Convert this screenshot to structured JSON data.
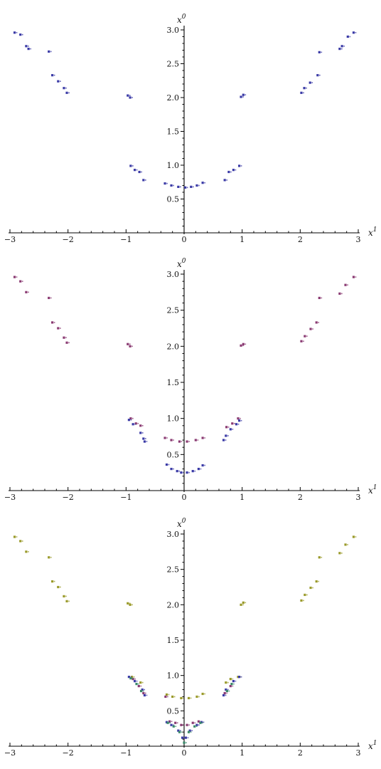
{
  "chart_data": [
    {
      "type": "scatter",
      "title": "",
      "xlabel": "x",
      "xlabel_sup": "1",
      "ylabel": "x",
      "ylabel_sup": "0",
      "xlim": [
        -3,
        3
      ],
      "ylim": [
        0,
        3
      ],
      "x_ticks": [
        "-3",
        "-2",
        "-1",
        "0",
        "1",
        "2",
        "3"
      ],
      "y_ticks": [
        "0.5",
        "1.0",
        "1.5",
        "2.0",
        "2.5",
        "3.0"
      ],
      "grid": false,
      "legend": "none",
      "series": [
        {
          "color": "#3a3aa6",
          "points": [
            [
              -2.92,
              2.96
            ],
            [
              -2.82,
              2.93
            ],
            [
              -2.72,
              2.76
            ],
            [
              -2.68,
              2.72
            ],
            [
              -2.33,
              2.68
            ],
            [
              -2.27,
              2.33
            ],
            [
              -2.17,
              2.24
            ],
            [
              -2.07,
              2.14
            ],
            [
              -2.02,
              2.07
            ],
            [
              -0.97,
              2.03
            ],
            [
              -0.93,
              2.0
            ],
            [
              -0.92,
              0.99
            ],
            [
              -0.85,
              0.93
            ],
            [
              -0.77,
              0.9
            ],
            [
              -0.7,
              0.78
            ],
            [
              -0.33,
              0.73
            ],
            [
              -0.22,
              0.7
            ],
            [
              -0.1,
              0.68
            ],
            [
              0.02,
              0.67
            ],
            [
              0.12,
              0.68
            ],
            [
              0.22,
              0.7
            ],
            [
              0.32,
              0.74
            ],
            [
              0.7,
              0.78
            ],
            [
              0.77,
              0.9
            ],
            [
              0.85,
              0.93
            ],
            [
              0.95,
              0.99
            ],
            [
              0.98,
              2.01
            ],
            [
              1.02,
              2.04
            ],
            [
              2.02,
              2.07
            ],
            [
              2.07,
              2.14
            ],
            [
              2.17,
              2.22
            ],
            [
              2.3,
              2.33
            ],
            [
              2.33,
              2.67
            ],
            [
              2.68,
              2.72
            ],
            [
              2.72,
              2.76
            ],
            [
              2.82,
              2.9
            ],
            [
              2.92,
              2.96
            ]
          ]
        }
      ]
    },
    {
      "type": "scatter",
      "title": "",
      "xlabel": "x",
      "xlabel_sup": "1",
      "ylabel": "x",
      "ylabel_sup": "0",
      "xlim": [
        -3,
        3
      ],
      "ylim": [
        0,
        3
      ],
      "x_ticks": [
        "-3",
        "-2",
        "-1",
        "0",
        "1",
        "2",
        "3"
      ],
      "y_ticks": [
        "0.5",
        "1.0",
        "1.5",
        "2.0",
        "2.5",
        "3.0"
      ],
      "grid": false,
      "legend": "none",
      "series": [
        {
          "color": "#8a3a72",
          "points": [
            [
              -2.92,
              2.96
            ],
            [
              -2.82,
              2.9
            ],
            [
              -2.72,
              2.75
            ],
            [
              -2.33,
              2.67
            ],
            [
              -2.27,
              2.33
            ],
            [
              -2.17,
              2.25
            ],
            [
              -2.07,
              2.12
            ],
            [
              -2.02,
              2.05
            ],
            [
              -0.97,
              2.03
            ],
            [
              -0.93,
              2.0
            ],
            [
              -0.92,
              1.0
            ],
            [
              -0.83,
              0.93
            ],
            [
              -0.75,
              0.9
            ],
            [
              -0.33,
              0.73
            ],
            [
              -0.22,
              0.7
            ],
            [
              -0.08,
              0.68
            ],
            [
              0.05,
              0.68
            ],
            [
              0.2,
              0.7
            ],
            [
              0.32,
              0.73
            ],
            [
              0.73,
              0.88
            ],
            [
              0.83,
              0.93
            ],
            [
              0.93,
              1.0
            ],
            [
              0.98,
              2.01
            ],
            [
              1.02,
              2.03
            ],
            [
              2.02,
              2.07
            ],
            [
              2.08,
              2.14
            ],
            [
              2.18,
              2.24
            ],
            [
              2.28,
              2.33
            ],
            [
              2.33,
              2.67
            ],
            [
              2.68,
              2.73
            ],
            [
              2.78,
              2.85
            ],
            [
              2.92,
              2.96
            ]
          ]
        },
        {
          "color": "#3a3aa6",
          "points": [
            [
              -0.95,
              0.98
            ],
            [
              -0.88,
              0.92
            ],
            [
              -0.75,
              0.8
            ],
            [
              -0.7,
              0.72
            ],
            [
              -0.68,
              0.68
            ],
            [
              -0.3,
              0.36
            ],
            [
              -0.22,
              0.3
            ],
            [
              -0.12,
              0.27
            ],
            [
              -0.05,
              0.25
            ],
            [
              0.05,
              0.25
            ],
            [
              0.15,
              0.27
            ],
            [
              0.25,
              0.3
            ],
            [
              0.32,
              0.35
            ],
            [
              0.68,
              0.7
            ],
            [
              0.72,
              0.76
            ],
            [
              0.8,
              0.85
            ],
            [
              0.9,
              0.92
            ],
            [
              0.95,
              0.97
            ]
          ]
        }
      ]
    },
    {
      "type": "scatter",
      "title": "",
      "xlabel": "x",
      "xlabel_sup": "1",
      "ylabel": "x",
      "ylabel_sup": "0",
      "xlim": [
        -3,
        3
      ],
      "ylim": [
        0,
        3
      ],
      "x_ticks": [
        "-3",
        "-2",
        "-1",
        "0",
        "1",
        "2",
        "3"
      ],
      "y_ticks": [
        "0.5",
        "1.0",
        "1.5",
        "2.0",
        "2.5",
        "3.0"
      ],
      "grid": false,
      "legend": "none",
      "series": [
        {
          "color": "#9a9a2a",
          "points": [
            [
              -2.92,
              2.96
            ],
            [
              -2.82,
              2.9
            ],
            [
              -2.72,
              2.75
            ],
            [
              -2.33,
              2.67
            ],
            [
              -2.27,
              2.33
            ],
            [
              -2.17,
              2.25
            ],
            [
              -2.07,
              2.12
            ],
            [
              -2.02,
              2.05
            ],
            [
              -0.97,
              2.02
            ],
            [
              -0.93,
              2.0
            ],
            [
              -0.9,
              0.98
            ],
            [
              -0.75,
              0.9
            ],
            [
              -0.3,
              0.73
            ],
            [
              -0.2,
              0.7
            ],
            [
              -0.05,
              0.68
            ],
            [
              0.08,
              0.68
            ],
            [
              0.22,
              0.7
            ],
            [
              0.32,
              0.74
            ],
            [
              0.72,
              0.9
            ],
            [
              0.8,
              0.95
            ],
            [
              0.93,
              0.98
            ],
            [
              0.98,
              2.0
            ],
            [
              1.02,
              2.03
            ],
            [
              2.02,
              2.06
            ],
            [
              2.08,
              2.14
            ],
            [
              2.18,
              2.24
            ],
            [
              2.28,
              2.33
            ],
            [
              2.33,
              2.67
            ],
            [
              2.68,
              2.73
            ],
            [
              2.78,
              2.85
            ],
            [
              2.92,
              2.96
            ]
          ]
        },
        {
          "color": "#8a3a72",
          "points": [
            [
              -0.88,
              0.95
            ],
            [
              -0.78,
              0.85
            ],
            [
              -0.7,
              0.75
            ],
            [
              -0.32,
              0.7
            ],
            [
              -0.25,
              0.35
            ],
            [
              -0.15,
              0.33
            ],
            [
              -0.05,
              0.3
            ],
            [
              0.05,
              0.3
            ],
            [
              0.15,
              0.33
            ],
            [
              0.25,
              0.35
            ],
            [
              0.7,
              0.75
            ],
            [
              0.8,
              0.85
            ]
          ]
        },
        {
          "color": "#3a3aa6",
          "points": [
            [
              -0.95,
              0.98
            ],
            [
              -0.85,
              0.92
            ],
            [
              -0.72,
              0.8
            ],
            [
              -0.68,
              0.72
            ],
            [
              -0.3,
              0.34
            ],
            [
              -0.22,
              0.3
            ],
            [
              -0.1,
              0.22
            ],
            [
              -0.03,
              0.12
            ],
            [
              0.03,
              0.12
            ],
            [
              0.1,
              0.22
            ],
            [
              0.22,
              0.3
            ],
            [
              0.3,
              0.34
            ],
            [
              0.68,
              0.72
            ],
            [
              0.72,
              0.8
            ],
            [
              0.85,
              0.92
            ],
            [
              0.95,
              0.98
            ]
          ]
        },
        {
          "color": "#3a8a6a",
          "points": [
            [
              -0.92,
              0.96
            ],
            [
              -0.82,
              0.88
            ],
            [
              -0.74,
              0.78
            ],
            [
              -0.28,
              0.33
            ],
            [
              -0.18,
              0.28
            ],
            [
              -0.08,
              0.2
            ],
            [
              0.0,
              0.05
            ],
            [
              0.08,
              0.2
            ],
            [
              0.18,
              0.28
            ],
            [
              0.28,
              0.33
            ],
            [
              0.74,
              0.78
            ],
            [
              0.82,
              0.88
            ]
          ]
        }
      ]
    }
  ]
}
